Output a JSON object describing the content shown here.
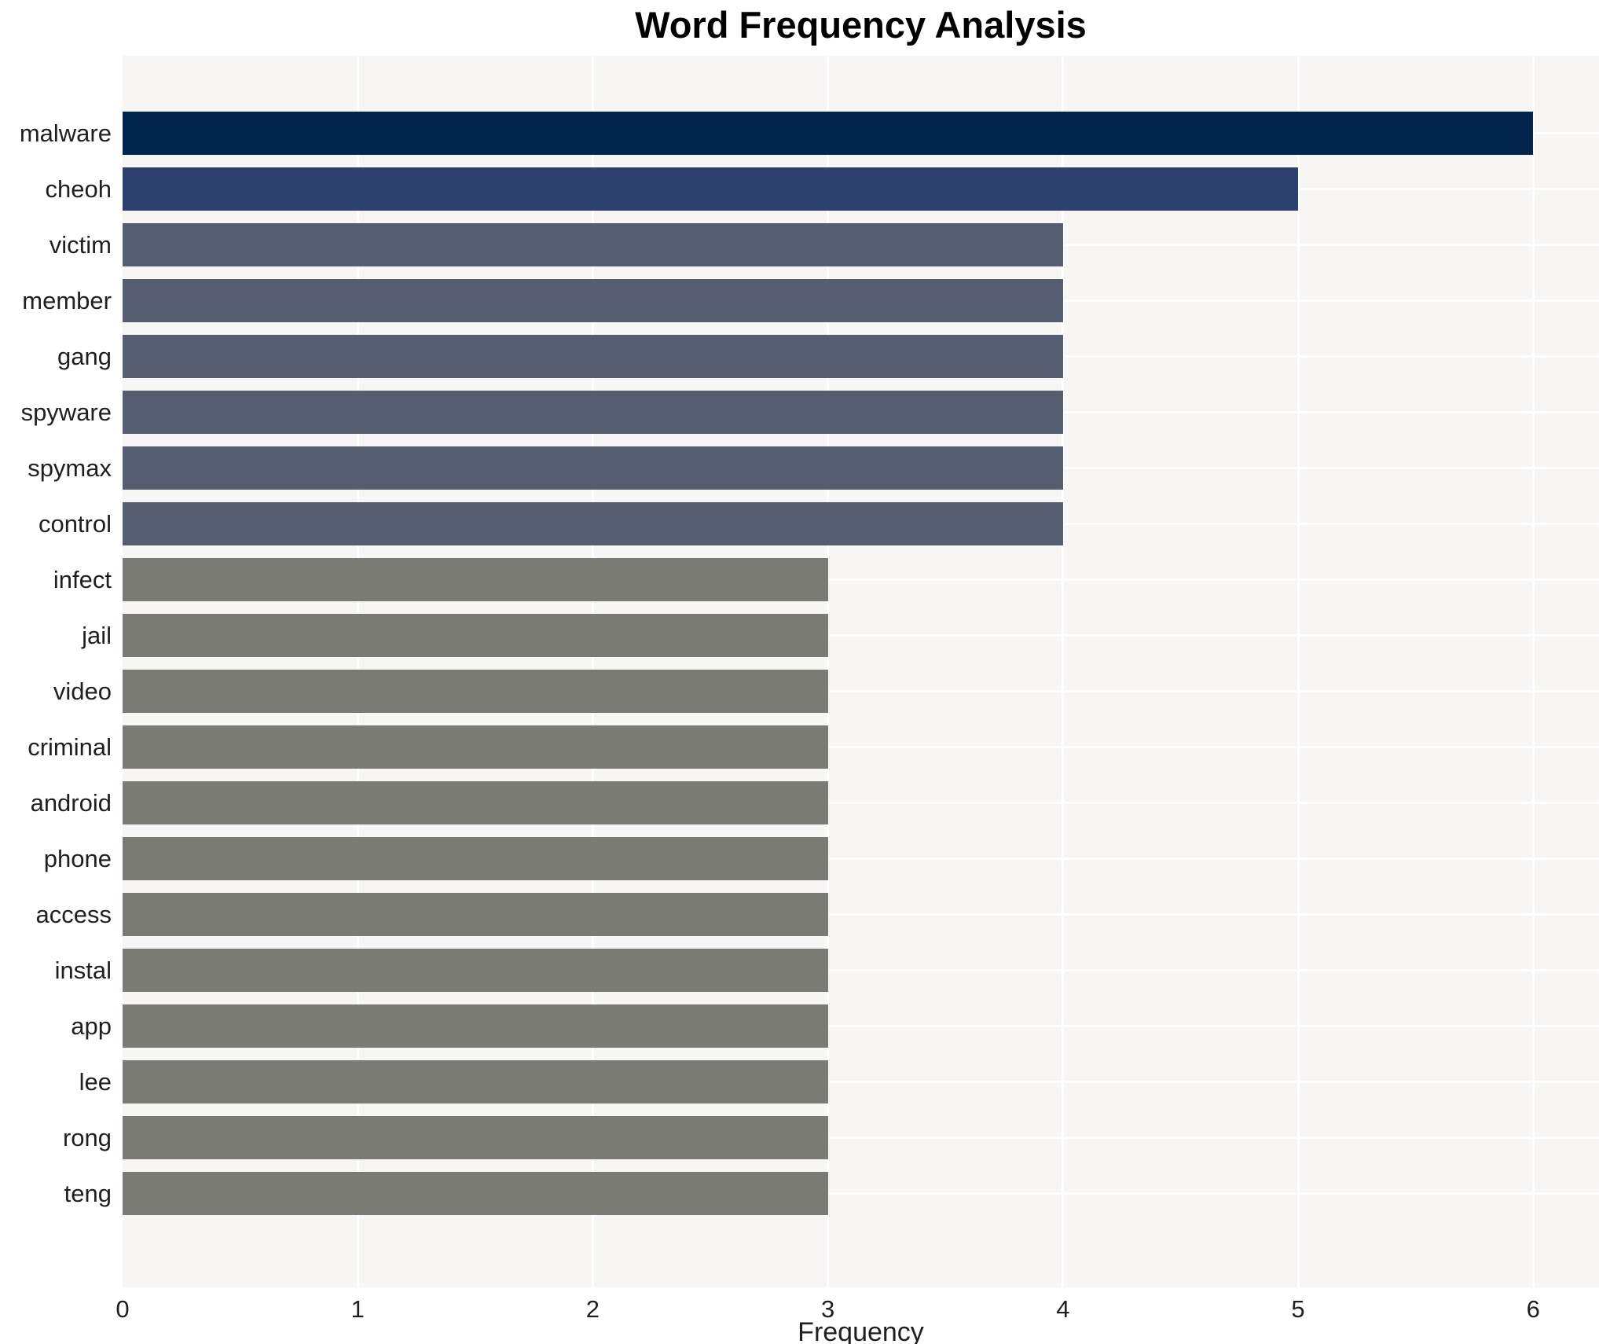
{
  "chart_data": {
    "type": "bar",
    "orientation": "horizontal",
    "title": "Word Frequency Analysis",
    "xlabel": "Frequency",
    "ylabel": "",
    "categories": [
      "malware",
      "cheoh",
      "victim",
      "member",
      "gang",
      "spyware",
      "spymax",
      "control",
      "infect",
      "jail",
      "video",
      "criminal",
      "android",
      "phone",
      "access",
      "instal",
      "app",
      "lee",
      "rong",
      "teng"
    ],
    "values": [
      6,
      5,
      4,
      4,
      4,
      4,
      4,
      4,
      3,
      3,
      3,
      3,
      3,
      3,
      3,
      3,
      3,
      3,
      3,
      3
    ],
    "xticks": [
      0,
      1,
      2,
      3,
      4,
      5,
      6
    ],
    "xlim": [
      0,
      6.28
    ],
    "grid": true,
    "legend": null,
    "colors": {
      "plot_background": "#f7f6f4",
      "grid_line": "#ffffff",
      "text": "#1f1f1f",
      "title_text": "#000000"
    },
    "bar_colors": [
      "#02254e",
      "#2d406e",
      "#565d70",
      "#565d70",
      "#565d70",
      "#565d70",
      "#565d70",
      "#565d70",
      "#7b7b76",
      "#7b7b76",
      "#7b7b76",
      "#7b7b76",
      "#7b7b76",
      "#7b7b76",
      "#7b7b76",
      "#7b7b76",
      "#7b7b76",
      "#7b7b76",
      "#7b7b76",
      "#7b7b76"
    ]
  }
}
